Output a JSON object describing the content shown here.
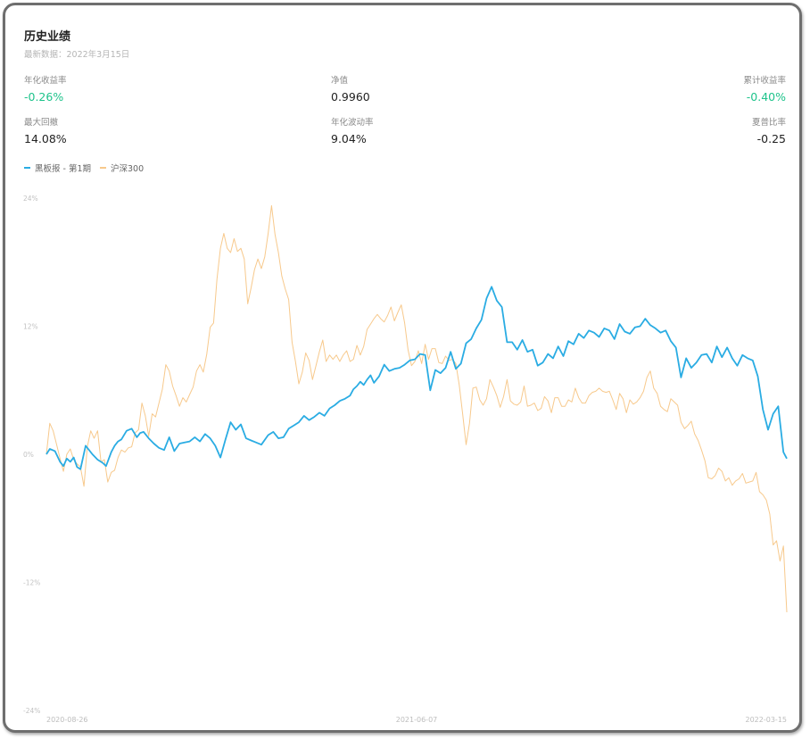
{
  "header": {
    "title": "历史业绩",
    "subtitle": "最新数据：2022年3月15日"
  },
  "stats": {
    "annual_return": {
      "label": "年化收益率",
      "value": "-0.26%"
    },
    "nav": {
      "label": "净值",
      "value": "0.9960"
    },
    "cumulative_return": {
      "label": "累计收益率",
      "value": "-0.40%"
    },
    "max_drawdown": {
      "label": "最大回撤",
      "value": "14.08%"
    },
    "annual_volatility": {
      "label": "年化波动率",
      "value": "9.04%"
    },
    "sharpe": {
      "label": "夏普比率",
      "value": "-0.25"
    }
  },
  "colors": {
    "fund": "#2aace3",
    "index": "#f7c98c",
    "positive_text": "#1ec38b"
  },
  "chart_data": {
    "type": "line",
    "x_tick_labels": [
      "2020-08-26",
      "2021-06-07",
      "2022-03-15"
    ],
    "y_tick_labels": [
      "24%",
      "12%",
      "0%",
      "-12%",
      "-24%"
    ],
    "ylim": [
      -24,
      24
    ],
    "grid": false,
    "legend_position": "top-left",
    "series": [
      {
        "name": "黑板报 - 第1期",
        "x": [
          0,
          2,
          5,
          8,
          10,
          12,
          14,
          16,
          18,
          20,
          23,
          25,
          27,
          30,
          33,
          35,
          38,
          40,
          42,
          44,
          47,
          50,
          53,
          55,
          57,
          60,
          63,
          66,
          69,
          72,
          75,
          78,
          81,
          84,
          87,
          90,
          93,
          96,
          99,
          102,
          105,
          108,
          111,
          114,
          117,
          120,
          123,
          126,
          130,
          133,
          136,
          139,
          142,
          145,
          148,
          151,
          154,
          157,
          160,
          163,
          166,
          169,
          172,
          175,
          178,
          180,
          182,
          184,
          186,
          188,
          190,
          192,
          195,
          198,
          201,
          204,
          207,
          210,
          213,
          216,
          219,
          222,
          225,
          228,
          231,
          234,
          237,
          240,
          243,
          246,
          249,
          252,
          255,
          258,
          261,
          264,
          267,
          270,
          273,
          276,
          279,
          282,
          285,
          288,
          291,
          294,
          297,
          300,
          303,
          306,
          309,
          312,
          315,
          318,
          321,
          324,
          327,
          330,
          333,
          336,
          339,
          342,
          345,
          348,
          351,
          354,
          357,
          360,
          363,
          366,
          369,
          372,
          375,
          378,
          381,
          384,
          387,
          390,
          393,
          396,
          399,
          402,
          405,
          408,
          411,
          414,
          417,
          420,
          423,
          426,
          429,
          432,
          434
        ],
        "y": [
          0.0,
          0.5,
          0.3,
          -0.7,
          -1.1,
          -0.4,
          -0.7,
          -0.3,
          -1.2,
          -1.4,
          0.8,
          0.4,
          0.0,
          -0.5,
          -0.8,
          -1.1,
          0.2,
          0.8,
          1.2,
          1.4,
          2.2,
          2.4,
          1.6,
          2.0,
          2.1,
          1.5,
          1.0,
          0.6,
          0.4,
          1.6,
          0.3,
          1.0,
          1.1,
          1.2,
          1.6,
          1.2,
          1.9,
          1.5,
          0.8,
          -0.3,
          1.4,
          3.0,
          2.3,
          2.8,
          1.5,
          1.3,
          1.1,
          0.9,
          1.8,
          2.1,
          1.5,
          1.6,
          2.4,
          2.7,
          3.0,
          3.6,
          3.2,
          3.5,
          3.9,
          3.6,
          4.3,
          4.6,
          5.0,
          5.2,
          5.5,
          6.1,
          6.4,
          6.8,
          6.5,
          7.0,
          7.4,
          6.7,
          7.3,
          8.4,
          7.8,
          8.0,
          8.1,
          8.4,
          8.8,
          8.9,
          9.4,
          9.3,
          6.0,
          7.9,
          7.6,
          8.1,
          9.6,
          8.0,
          8.5,
          10.4,
          10.8,
          11.8,
          12.6,
          14.6,
          15.7,
          14.4,
          13.8,
          10.5,
          10.5,
          9.8,
          10.7,
          9.6,
          9.8,
          8.3,
          8.6,
          9.4,
          9.0,
          10.1,
          9.2,
          10.6,
          10.3,
          11.3,
          10.9,
          11.6,
          11.4,
          11.0,
          11.8,
          11.6,
          10.8,
          12.2,
          11.5,
          11.3,
          11.9,
          12.0,
          12.7,
          12.1,
          11.8,
          11.4,
          11.6,
          10.6,
          10.0,
          7.2,
          9.0,
          8.1,
          8.6,
          9.3,
          9.4,
          8.6,
          10.1,
          9.1,
          10.0,
          9.0,
          8.3,
          9.3,
          9.0,
          8.8,
          7.3,
          4.2,
          2.3,
          3.8,
          4.5,
          0.2,
          -0.4
        ]
      },
      {
        "name": "沪深300",
        "x": [
          0,
          2,
          4,
          6,
          8,
          10,
          12,
          14,
          16,
          18,
          20,
          22,
          24,
          26,
          28,
          30,
          32,
          34,
          36,
          38,
          40,
          42,
          44,
          46,
          48,
          50,
          52,
          54,
          56,
          58,
          60,
          62,
          64,
          66,
          68,
          70,
          72,
          74,
          76,
          78,
          80,
          82,
          84,
          86,
          88,
          90,
          92,
          94,
          96,
          98,
          100,
          102,
          104,
          106,
          108,
          110,
          112,
          114,
          116,
          118,
          120,
          122,
          124,
          126,
          128,
          130,
          132,
          134,
          136,
          138,
          140,
          142,
          144,
          146,
          148,
          150,
          152,
          154,
          156,
          158,
          160,
          162,
          164,
          166,
          168,
          170,
          172,
          174,
          176,
          178,
          180,
          182,
          184,
          186,
          188,
          190,
          192,
          194,
          196,
          198,
          200,
          202,
          204,
          206,
          208,
          210,
          212,
          214,
          216,
          218,
          220,
          222,
          224,
          226,
          228,
          230,
          232,
          234,
          236,
          238,
          240,
          242,
          244,
          246,
          248,
          250,
          252,
          254,
          256,
          258,
          260,
          262,
          264,
          266,
          268,
          270,
          272,
          274,
          276,
          278,
          280,
          282,
          284,
          286,
          288,
          290,
          292,
          294,
          296,
          298,
          300,
          302,
          304,
          306,
          308,
          310,
          312,
          314,
          316,
          318,
          320,
          322,
          324,
          326,
          328,
          330,
          332,
          334,
          336,
          338,
          340,
          342,
          344,
          346,
          348,
          350,
          352,
          354,
          356,
          358,
          360,
          362,
          364,
          366,
          368,
          370,
          372,
          374,
          376,
          378,
          380,
          382,
          384,
          386,
          388,
          390,
          392,
          394,
          396,
          398,
          400,
          402,
          404,
          406,
          408,
          410,
          412,
          414,
          416,
          418,
          420,
          422,
          424,
          426,
          428,
          430,
          432,
          434
        ],
        "y": [
          0.0,
          2.9,
          2.2,
          0.9,
          -0.4,
          -1.6,
          0.0,
          0.5,
          -0.5,
          -0.9,
          -1.2,
          -3.0,
          0.7,
          2.2,
          1.5,
          2.2,
          -0.7,
          -0.5,
          -2.6,
          -1.7,
          -1.5,
          -0.3,
          0.4,
          0.2,
          0.6,
          0.7,
          2.0,
          2.3,
          4.8,
          3.6,
          1.7,
          3.8,
          3.5,
          4.8,
          6.1,
          8.4,
          7.8,
          6.4,
          5.5,
          4.5,
          5.3,
          4.9,
          5.6,
          6.3,
          7.8,
          8.4,
          7.7,
          9.4,
          11.9,
          12.3,
          16.4,
          19.3,
          20.7,
          19.3,
          18.9,
          20.2,
          19.0,
          19.3,
          18.3,
          14.1,
          15.6,
          17.3,
          18.3,
          17.4,
          18.5,
          20.7,
          23.3,
          20.6,
          18.9,
          16.7,
          15.5,
          14.5,
          10.5,
          8.7,
          6.6,
          7.7,
          9.5,
          8.8,
          7.0,
          8.3,
          9.6,
          10.7,
          8.7,
          9.3,
          8.9,
          9.3,
          8.7,
          9.3,
          9.7,
          8.7,
          8.9,
          10.2,
          9.3,
          10.1,
          11.7,
          12.2,
          12.7,
          13.1,
          12.7,
          12.4,
          13.0,
          13.8,
          12.5,
          13.3,
          14.0,
          12.3,
          9.8,
          8.3,
          8.7,
          9.7,
          8.5,
          10.3,
          8.9,
          9.9,
          9.9,
          8.6,
          8.5,
          9.2,
          8.8,
          8.9,
          8.5,
          6.5,
          3.8,
          0.9,
          2.9,
          6.2,
          6.3,
          5.1,
          4.6,
          5.2,
          7.0,
          6.3,
          5.5,
          4.4,
          5.4,
          7.0,
          5.0,
          4.7,
          4.6,
          4.9,
          6.4,
          4.5,
          4.6,
          4.8,
          4.1,
          4.3,
          5.4,
          5.0,
          3.9,
          5.3,
          5.3,
          4.5,
          4.5,
          5.1,
          4.9,
          6.2,
          5.3,
          4.8,
          4.8,
          5.5,
          5.8,
          5.9,
          6.2,
          5.9,
          5.8,
          5.9,
          5.1,
          4.2,
          5.7,
          5.2,
          3.9,
          5.1,
          4.7,
          4.9,
          5.3,
          5.9,
          7.2,
          7.8,
          6.2,
          5.7,
          4.5,
          4.2,
          4.0,
          5.2,
          4.9,
          4.6,
          3.0,
          2.4,
          2.7,
          3.1,
          1.9,
          1.3,
          0.4,
          -0.6,
          -2.2,
          -2.3,
          -2.0,
          -1.3,
          -1.6,
          -2.5,
          -2.2,
          -2.9,
          -2.5,
          -2.3,
          -1.8,
          -2.7,
          -2.6,
          -2.5,
          -1.7,
          -3.5,
          -3.8,
          -4.3,
          -5.6,
          -8.5,
          -8.1,
          -10.0,
          -8.6,
          -14.8
        ]
      }
    ]
  }
}
